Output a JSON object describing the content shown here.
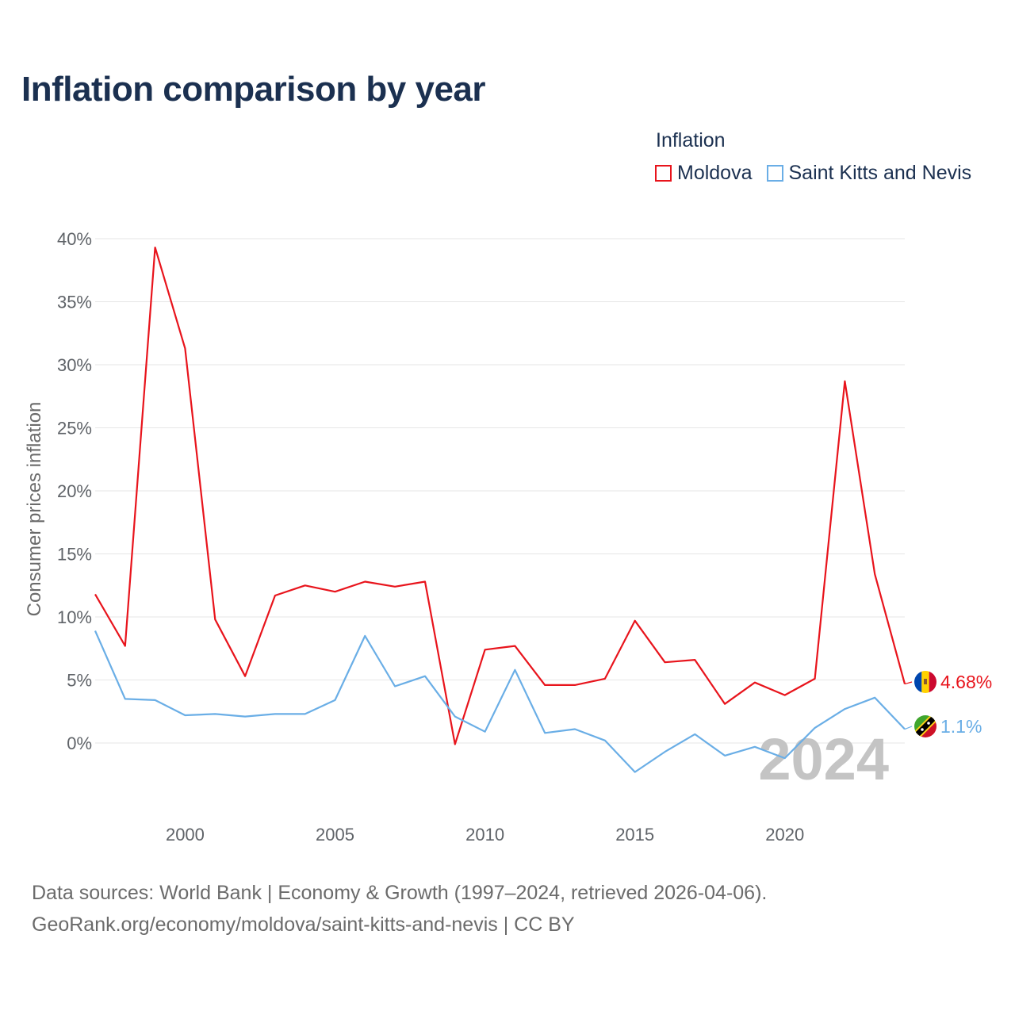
{
  "chart_data": {
    "type": "line",
    "title": "Inflation comparison by year",
    "legend_title": "Inflation",
    "ylabel": "Consumer prices inflation",
    "xlabel": "",
    "ylim": [
      -5,
      40
    ],
    "xlim": [
      1997,
      2024
    ],
    "y_ticks": [
      0,
      5,
      10,
      15,
      20,
      25,
      30,
      35,
      40
    ],
    "y_tick_labels": [
      "0%",
      "5%",
      "10%",
      "15%",
      "20%",
      "25%",
      "30%",
      "35%",
      "40%"
    ],
    "x_ticks": [
      2000,
      2005,
      2010,
      2015,
      2020
    ],
    "x_tick_labels": [
      "2000",
      "2005",
      "2010",
      "2015",
      "2020"
    ],
    "x": [
      1997,
      1998,
      1999,
      2000,
      2001,
      2002,
      2003,
      2004,
      2005,
      2006,
      2007,
      2008,
      2009,
      2010,
      2011,
      2012,
      2013,
      2014,
      2015,
      2016,
      2017,
      2018,
      2019,
      2020,
      2021,
      2022,
      2023,
      2024
    ],
    "series": [
      {
        "name": "Moldova",
        "color": "#e8141c",
        "end_label": "4.68%",
        "values": [
          11.8,
          7.7,
          39.3,
          31.3,
          9.8,
          5.3,
          11.7,
          12.5,
          12.0,
          12.8,
          12.4,
          12.8,
          -0.1,
          7.4,
          7.7,
          4.6,
          4.6,
          5.1,
          9.7,
          6.4,
          6.6,
          3.1,
          4.8,
          3.8,
          5.1,
          28.7,
          13.4,
          4.68
        ]
      },
      {
        "name": "Saint Kitts and Nevis",
        "color": "#6aaee6",
        "end_label": "1.1%",
        "values": [
          8.9,
          3.5,
          3.4,
          2.2,
          2.3,
          2.1,
          2.3,
          2.3,
          3.4,
          8.5,
          4.5,
          5.3,
          2.1,
          0.9,
          5.8,
          0.8,
          1.1,
          0.2,
          -2.3,
          -0.7,
          0.7,
          -1.0,
          -0.3,
          -1.2,
          1.2,
          2.7,
          3.6,
          1.1
        ]
      }
    ],
    "watermark_year": "2024"
  },
  "footer": {
    "line1": "Data sources: World Bank | Economy & Growth (1997–2024, retrieved 2026-04-06).",
    "line2": "GeoRank.org/economy/moldova/saint-kitts-and-nevis | CC BY"
  },
  "colors": {
    "title": "#1b3050",
    "grid": "#e6e6e6",
    "watermark": "#c4c4c4"
  }
}
